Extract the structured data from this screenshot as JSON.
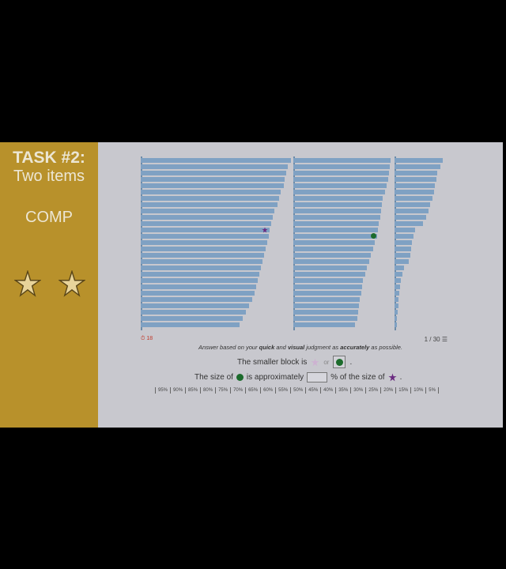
{
  "sidebar": {
    "title": "TASK #2:",
    "subtitle": "Two items",
    "code": "COMP",
    "stars_count": 2,
    "accent_color": "#b8912b"
  },
  "chart_data": {
    "type": "bar",
    "panels": [
      {
        "values": [
          1.0,
          0.98,
          0.97,
          0.96,
          0.95,
          0.93,
          0.92,
          0.91,
          0.89,
          0.88,
          0.87,
          0.86,
          0.85,
          0.84,
          0.83,
          0.82,
          0.81,
          0.8,
          0.79,
          0.78,
          0.77,
          0.76,
          0.74,
          0.72,
          0.7,
          0.68,
          0.66
        ]
      },
      {
        "values": [
          0.98,
          0.97,
          0.96,
          0.95,
          0.94,
          0.92,
          0.9,
          0.89,
          0.88,
          0.87,
          0.86,
          0.85,
          0.84,
          0.82,
          0.8,
          0.78,
          0.76,
          0.74,
          0.72,
          0.7,
          0.69,
          0.68,
          0.67,
          0.66,
          0.65,
          0.64,
          0.62
        ]
      },
      {
        "values": [
          0.92,
          0.88,
          0.82,
          0.8,
          0.78,
          0.75,
          0.72,
          0.68,
          0.65,
          0.6,
          0.55,
          0.4,
          0.36,
          0.34,
          0.32,
          0.3,
          0.28,
          0.18,
          0.15,
          0.12,
          0.1,
          0.09,
          0.08,
          0.07,
          0.06,
          0.05,
          0.04
        ]
      }
    ],
    "star_mark": {
      "panel": 0,
      "bar": 11
    },
    "dot_mark": {
      "panel": 1,
      "bar": 12
    },
    "bar_color": "#7fa1c3"
  },
  "footer": {
    "timer": "18",
    "page": "1 / 30",
    "instruction_pre": "Answer based on your ",
    "instruction_quick": "quick",
    "instruction_mid": " and ",
    "instruction_visual": "visual",
    "instruction_mid2": " judgment as ",
    "instruction_acc": "accurately",
    "instruction_post": " as possible."
  },
  "question1": {
    "label": "The smaller block is",
    "or": "or",
    "end": "."
  },
  "question2": {
    "pre": "The size of",
    "mid": "is approximately",
    "post": "% of the size of",
    "end": "."
  },
  "scale": [
    "95%",
    "90%",
    "85%",
    "80%",
    "75%",
    "70%",
    "65%",
    "60%",
    "55%",
    "50%",
    "45%",
    "40%",
    "35%",
    "30%",
    "25%",
    "20%",
    "15%",
    "10%",
    "5%"
  ]
}
